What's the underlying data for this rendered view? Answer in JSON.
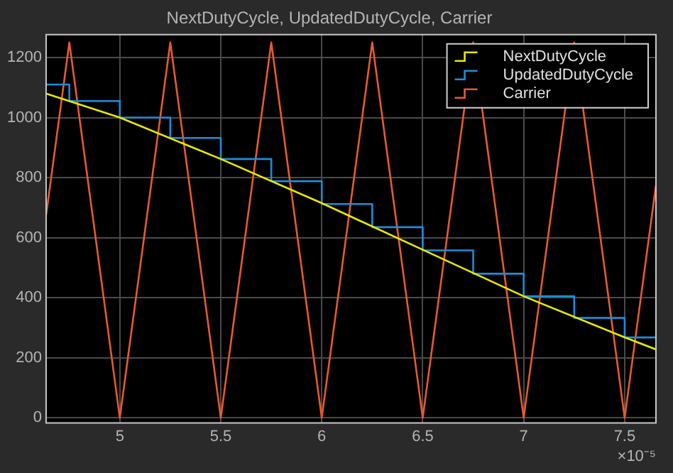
{
  "chart_data": {
    "type": "line",
    "title": "NextDutyCycle, UpdatedDutyCycle, Carrier",
    "xlim": [
      4.635,
      7.655
    ],
    "xticks": [
      5,
      5.5,
      6,
      6.5,
      7,
      7.5
    ],
    "ylim": [
      -17,
      1276
    ],
    "yticks": [
      0,
      200,
      400,
      600,
      800,
      1000,
      1200
    ],
    "grid": true,
    "legend": "top right",
    "marker": "none",
    "annotations": [
      "×10⁻⁵"
    ],
    "series": [
      {
        "name": "NextDutyCycle",
        "color": "#e8e800",
        "x": [
          4.635,
          5.0,
          5.5,
          6.0,
          6.5,
          7.0,
          7.5,
          7.655
        ],
        "values": [
          1080,
          1000,
          862,
          715,
          560,
          405,
          268,
          228
        ]
      },
      {
        "name": "UpdatedDutyCycle",
        "type": "step",
        "color": "#1c8ddb",
        "x": [
          4.635,
          4.75,
          5.0,
          5.25,
          5.5,
          5.75,
          6.0,
          6.25,
          6.5,
          6.75,
          7.0,
          7.25,
          7.5,
          7.655
        ],
        "values": [
          1110,
          1055,
          1000,
          932,
          862,
          788,
          712,
          635,
          558,
          480,
          405,
          333,
          268,
          268
        ]
      },
      {
        "name": "Carrier",
        "color": "#e55b30",
        "x": [
          4.635,
          4.75,
          5.0,
          5.25,
          5.5,
          5.75,
          6.0,
          6.25,
          6.5,
          6.75,
          7.0,
          7.25,
          7.5,
          7.655
        ],
        "values": [
          675,
          1250,
          0,
          1250,
          0,
          1250,
          0,
          1250,
          0,
          1250,
          0,
          1250,
          0,
          775
        ]
      }
    ]
  }
}
